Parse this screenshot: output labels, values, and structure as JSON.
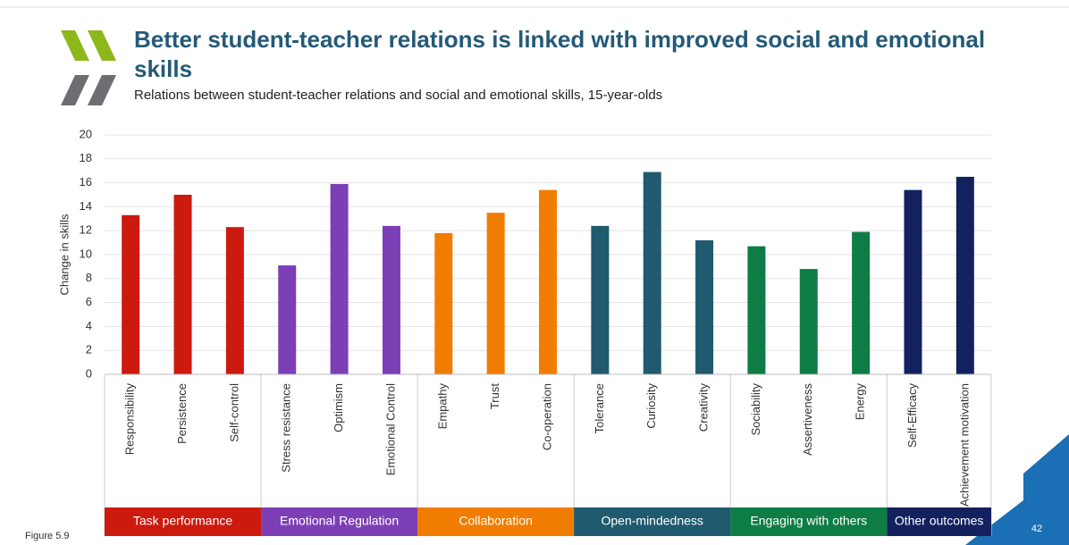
{
  "chart_data": {
    "type": "bar",
    "title": "Better student-teacher relations is linked with improved social and emotional skills",
    "subtitle": "Relations between student-teacher relations and social and emotional skills, 15-year-olds",
    "ylabel": "Change in skills",
    "ylim": [
      0,
      20
    ],
    "yticks": [
      0,
      2,
      4,
      6,
      8,
      10,
      12,
      14,
      16,
      18,
      20
    ],
    "grid": true,
    "series": [
      {
        "name": "Task performance",
        "color": "#cc1a0e",
        "categories": [
          "Responsibility",
          "Persistence",
          "Self-control"
        ],
        "values": [
          13.3,
          15.0,
          12.3
        ]
      },
      {
        "name": "Emotional Regulation",
        "color": "#7d3fb6",
        "categories": [
          "Stress resistance",
          "Optimism",
          "Emotional Control"
        ],
        "values": [
          9.1,
          15.9,
          12.4
        ]
      },
      {
        "name": "Collaboration",
        "color": "#f07d00",
        "categories": [
          "Empathy",
          "Trust",
          "Co-operation"
        ],
        "values": [
          11.8,
          13.5,
          15.4
        ]
      },
      {
        "name": "Open-mindedness",
        "color": "#1f5a6e",
        "categories": [
          "Tolerance",
          "Curiosity",
          "Creativity"
        ],
        "values": [
          12.4,
          16.9,
          11.2
        ]
      },
      {
        "name": "Engaging with others",
        "color": "#0e7d45",
        "categories": [
          "Sociability",
          "Assertiveness",
          "Energy"
        ],
        "values": [
          10.7,
          8.8,
          11.9
        ]
      },
      {
        "name": "Other outcomes",
        "color": "#13215e",
        "categories": [
          "Self-Efficacy",
          "Achievement motivation"
        ],
        "values": [
          15.4,
          16.5
        ]
      }
    ]
  },
  "footer": {
    "figure": "Figure 5.9",
    "page_number": "42"
  }
}
